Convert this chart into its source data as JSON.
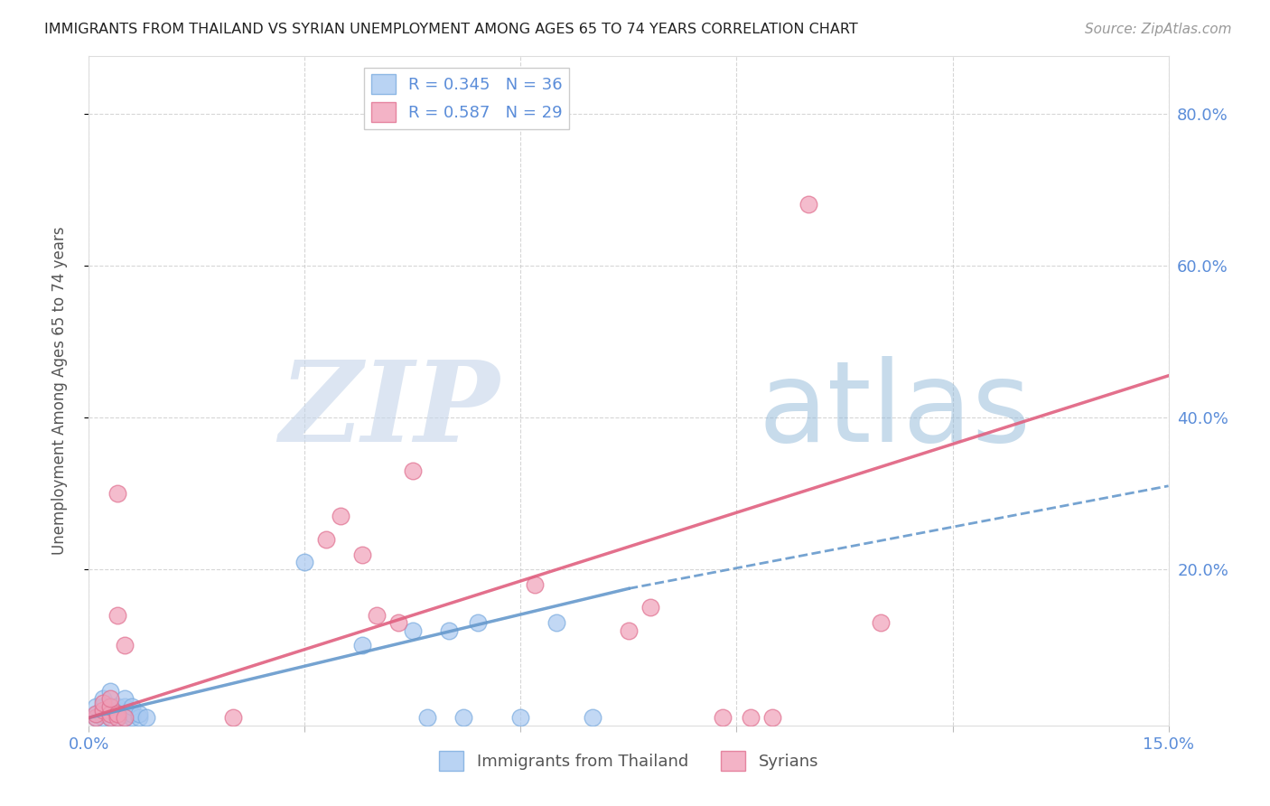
{
  "title": "IMMIGRANTS FROM THAILAND VS SYRIAN UNEMPLOYMENT AMONG AGES 65 TO 74 YEARS CORRELATION CHART",
  "source": "Source: ZipAtlas.com",
  "ylabel": "Unemployment Among Ages 65 to 74 years",
  "xlim": [
    0.0,
    0.15
  ],
  "ylim": [
    -0.005,
    0.875
  ],
  "right_yticks": [
    0.2,
    0.4,
    0.6,
    0.8
  ],
  "right_yticklabels": [
    "20.0%",
    "40.0%",
    "60.0%",
    "80.0%"
  ],
  "xticks": [
    0.0,
    0.03,
    0.06,
    0.09,
    0.12,
    0.15
  ],
  "xticklabels": [
    "0.0%",
    "",
    "",
    "",
    "",
    "15.0%"
  ],
  "legend_entries": [
    {
      "label": "R = 0.345   N = 36",
      "color": "#7eb3e8"
    },
    {
      "label": "R = 0.587   N = 29",
      "color": "#f07090"
    }
  ],
  "watermark_zip": "ZIP",
  "watermark_atlas": "atlas",
  "watermark_color_zip": "#c5d5ea",
  "watermark_color_atlas": "#90b8d8",
  "title_color": "#222222",
  "axis_color": "#5b8dd9",
  "grid_color": "#cccccc",
  "thailand_color": "#a8c8f0",
  "thailand_edge_color": "#7aabdf",
  "syria_color": "#f0a0b8",
  "syria_edge_color": "#e07090",
  "thailand_line_color": "#6699cc",
  "syria_line_color": "#e06080",
  "thailand_scatter": [
    [
      0.001,
      0.005
    ],
    [
      0.001,
      0.01
    ],
    [
      0.001,
      0.02
    ],
    [
      0.002,
      0.005
    ],
    [
      0.002,
      0.01
    ],
    [
      0.002,
      0.02
    ],
    [
      0.002,
      0.03
    ],
    [
      0.003,
      0.005
    ],
    [
      0.003,
      0.01
    ],
    [
      0.003,
      0.015
    ],
    [
      0.003,
      0.02
    ],
    [
      0.003,
      0.04
    ],
    [
      0.004,
      0.005
    ],
    [
      0.004,
      0.01
    ],
    [
      0.004,
      0.015
    ],
    [
      0.004,
      0.02
    ],
    [
      0.005,
      0.005
    ],
    [
      0.005,
      0.01
    ],
    [
      0.005,
      0.02
    ],
    [
      0.005,
      0.03
    ],
    [
      0.006,
      0.005
    ],
    [
      0.006,
      0.01
    ],
    [
      0.006,
      0.02
    ],
    [
      0.007,
      0.005
    ],
    [
      0.007,
      0.01
    ],
    [
      0.008,
      0.005
    ],
    [
      0.03,
      0.21
    ],
    [
      0.038,
      0.1
    ],
    [
      0.045,
      0.12
    ],
    [
      0.047,
      0.005
    ],
    [
      0.05,
      0.12
    ],
    [
      0.052,
      0.005
    ],
    [
      0.054,
      0.13
    ],
    [
      0.06,
      0.005
    ],
    [
      0.065,
      0.13
    ],
    [
      0.07,
      0.005
    ]
  ],
  "syria_scatter": [
    [
      0.001,
      0.005
    ],
    [
      0.001,
      0.01
    ],
    [
      0.002,
      0.015
    ],
    [
      0.002,
      0.025
    ],
    [
      0.003,
      0.005
    ],
    [
      0.003,
      0.01
    ],
    [
      0.003,
      0.02
    ],
    [
      0.003,
      0.03
    ],
    [
      0.004,
      0.005
    ],
    [
      0.004,
      0.01
    ],
    [
      0.004,
      0.14
    ],
    [
      0.004,
      0.3
    ],
    [
      0.005,
      0.005
    ],
    [
      0.005,
      0.1
    ],
    [
      0.02,
      0.005
    ],
    [
      0.033,
      0.24
    ],
    [
      0.035,
      0.27
    ],
    [
      0.038,
      0.22
    ],
    [
      0.04,
      0.14
    ],
    [
      0.043,
      0.13
    ],
    [
      0.045,
      0.33
    ],
    [
      0.062,
      0.18
    ],
    [
      0.075,
      0.12
    ],
    [
      0.078,
      0.15
    ],
    [
      0.088,
      0.005
    ],
    [
      0.092,
      0.005
    ],
    [
      0.095,
      0.005
    ],
    [
      0.1,
      0.68
    ],
    [
      0.11,
      0.13
    ]
  ],
  "thailand_line": {
    "x": [
      0.0,
      0.075
    ],
    "y": [
      0.005,
      0.175
    ]
  },
  "thailand_dashed": {
    "x": [
      0.075,
      0.15
    ],
    "y": [
      0.175,
      0.31
    ]
  },
  "syria_line": {
    "x": [
      0.0,
      0.15
    ],
    "y": [
      0.005,
      0.455
    ]
  }
}
